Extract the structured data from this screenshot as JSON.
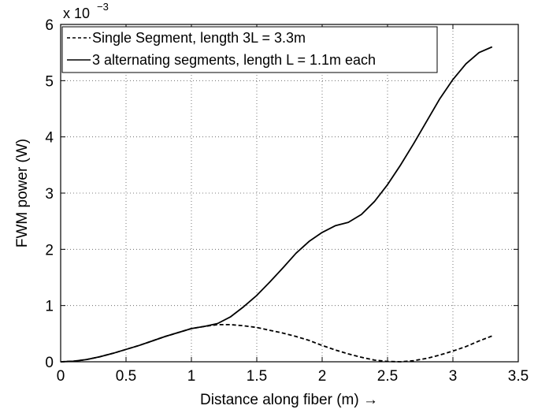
{
  "chart_data": {
    "type": "line",
    "title": "",
    "xlabel": "Distance along fiber (m) →",
    "ylabel": "FWM power (W)",
    "y_scale_label": {
      "base": "x 10",
      "exponent": "−3"
    },
    "xlim": [
      0,
      3.5
    ],
    "ylim": [
      0,
      6
    ],
    "xticks": [
      0,
      0.5,
      1,
      1.5,
      2,
      2.5,
      3,
      3.5
    ],
    "xtick_labels": [
      "0",
      "0.5",
      "1",
      "1.5",
      "2",
      "2.5",
      "3",
      "3.5"
    ],
    "yticks": [
      0,
      1,
      2,
      3,
      4,
      5,
      6
    ],
    "ytick_labels": [
      "0",
      "1",
      "2",
      "3",
      "4",
      "5",
      "6"
    ],
    "grid": true,
    "legend_position": "top-left",
    "series": [
      {
        "name": "Single Segment, length 3L = 3.3m",
        "style": "dashed",
        "color": "#000000",
        "x": [
          0,
          0.1,
          0.2,
          0.3,
          0.4,
          0.5,
          0.6,
          0.7,
          0.8,
          0.9,
          1.0,
          1.1,
          1.2,
          1.3,
          1.4,
          1.5,
          1.6,
          1.7,
          1.8,
          1.9,
          2.0,
          2.1,
          2.2,
          2.3,
          2.4,
          2.5,
          2.6,
          2.7,
          2.8,
          2.9,
          3.0,
          3.1,
          3.2,
          3.3
        ],
        "values": [
          0,
          0.01,
          0.04,
          0.09,
          0.15,
          0.22,
          0.29,
          0.37,
          0.45,
          0.52,
          0.59,
          0.63,
          0.66,
          0.66,
          0.64,
          0.61,
          0.56,
          0.51,
          0.45,
          0.38,
          0.29,
          0.21,
          0.14,
          0.08,
          0.03,
          0.005,
          0.0,
          0.02,
          0.06,
          0.12,
          0.19,
          0.27,
          0.37,
          0.46
        ]
      },
      {
        "name": "3 alternating segments, length L = 1.1m each",
        "style": "solid",
        "color": "#000000",
        "x": [
          0,
          0.1,
          0.2,
          0.3,
          0.4,
          0.5,
          0.6,
          0.7,
          0.8,
          0.9,
          1.0,
          1.1,
          1.2,
          1.3,
          1.4,
          1.5,
          1.6,
          1.7,
          1.8,
          1.9,
          2.0,
          2.1,
          2.2,
          2.3,
          2.4,
          2.5,
          2.6,
          2.7,
          2.8,
          2.9,
          3.0,
          3.1,
          3.2,
          3.3
        ],
        "values": [
          0,
          0.01,
          0.04,
          0.09,
          0.15,
          0.22,
          0.29,
          0.37,
          0.45,
          0.52,
          0.59,
          0.63,
          0.68,
          0.8,
          0.98,
          1.18,
          1.42,
          1.67,
          1.93,
          2.14,
          2.3,
          2.42,
          2.48,
          2.62,
          2.85,
          3.15,
          3.5,
          3.88,
          4.28,
          4.68,
          5.02,
          5.3,
          5.5,
          5.6
        ]
      }
    ]
  }
}
